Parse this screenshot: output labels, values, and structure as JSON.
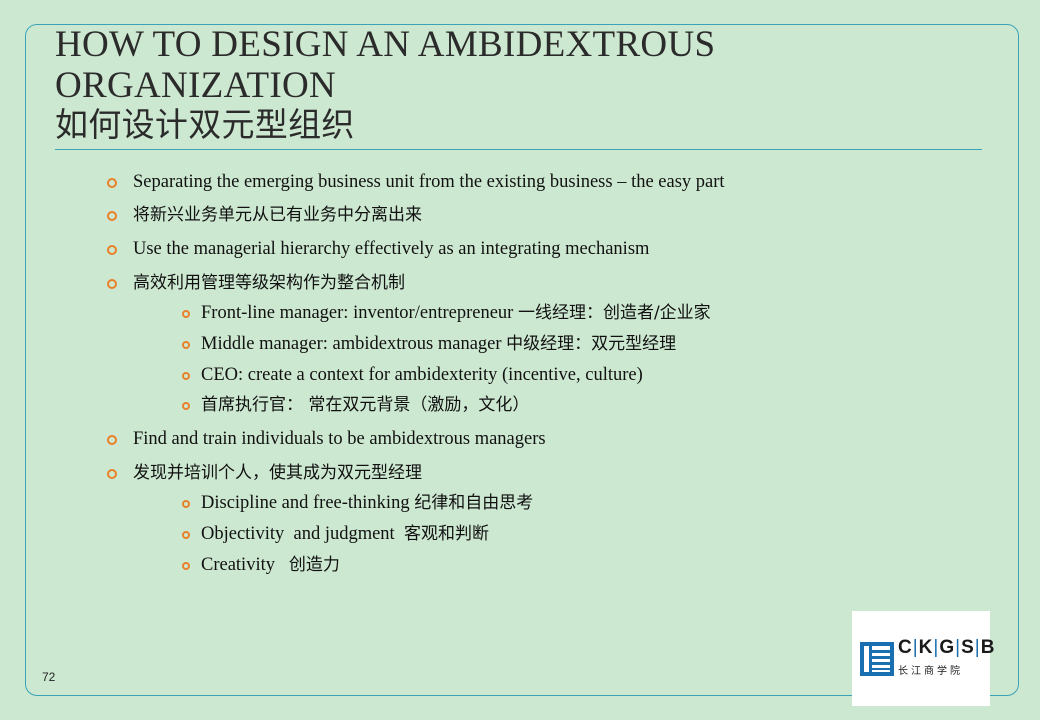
{
  "title": {
    "line1": "HOW TO DESIGN AN AMBIDEXTROUS",
    "line2": "ORGANIZATION",
    "line3": "如何设计双元型组织"
  },
  "bullets": [
    {
      "level": 1,
      "text": "Separating the emerging business unit from the existing business – the easy part"
    },
    {
      "level": 1,
      "text": "将新兴业务单元从已有业务中分离出来"
    },
    {
      "level": 1,
      "text": "Use the managerial hierarchy effectively as an integrating mechanism"
    },
    {
      "level": 1,
      "text": "高效利用管理等级架构作为整合机制"
    },
    {
      "level": 2,
      "en": "Front-line manager: inventor/entrepreneur ",
      "zh": "一线经理：创造者/企业家"
    },
    {
      "level": 2,
      "en": "Middle manager: ambidextrous manager ",
      "zh": "中级经理：双元型经理"
    },
    {
      "level": 2,
      "text": "CEO: create a context for ambidexterity (incentive, culture)"
    },
    {
      "level": 2,
      "text": "首席执行官： 常在双元背景（激励，文化）"
    },
    {
      "level": 1,
      "text": "Find and train individuals to be ambidextrous managers"
    },
    {
      "level": 1,
      "text": "发现并培训个人，使其成为双元型经理"
    },
    {
      "level": 2,
      "en": "Discipline and free-thinking ",
      "zh": "纪律和自由思考"
    },
    {
      "level": 2,
      "en": "Objectivity  and judgment  ",
      "zh": "客观和判断"
    },
    {
      "level": 2,
      "en": "Creativity   ",
      "zh": "创造力"
    }
  ],
  "page_number": "72",
  "logo": {
    "letters": [
      "C",
      "K",
      "G",
      "S",
      "B"
    ],
    "chinese": "长江商学院",
    "icon": "ckgsb-seal-icon",
    "brand_color": "#1a6fb0"
  },
  "colors": {
    "background": "#cde8d1",
    "frame": "#3aa3b8",
    "bullet": "#e8812a"
  }
}
